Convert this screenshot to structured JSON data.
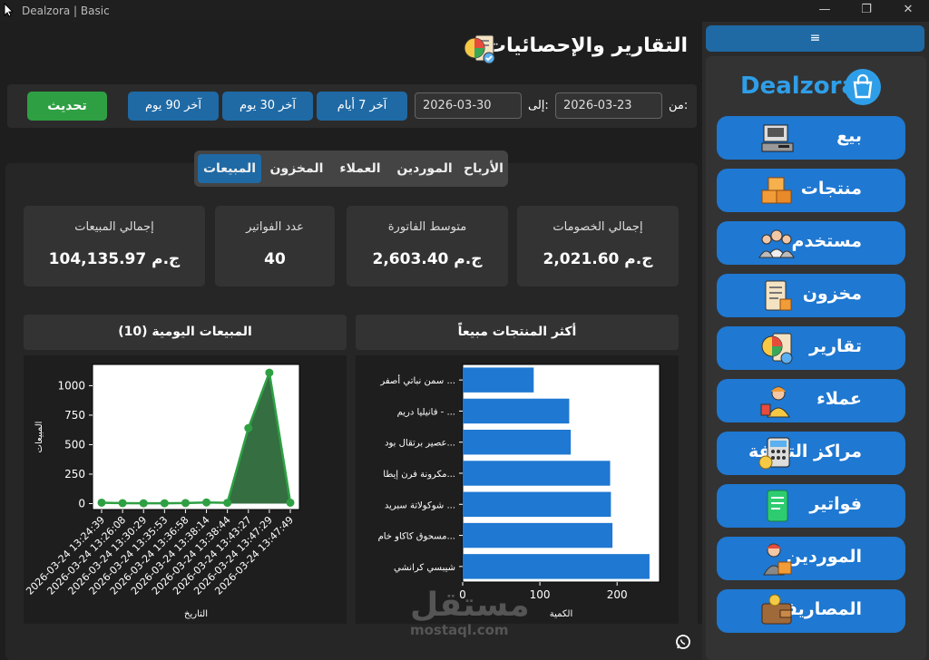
{
  "window": {
    "title": "Dealzora | Basic",
    "min_glyph": "—",
    "max_glyph": "❐",
    "close_glyph": "✕"
  },
  "page": {
    "title": "التقارير والإحصائيات"
  },
  "filters": {
    "from_label": "من:",
    "from_value": "2026-03-23",
    "to_label": "إلى:",
    "to_value": "2026-03-30",
    "presets": [
      "آخر 7 أيام",
      "آخر 30 يوم",
      "آخر 90 يوم"
    ],
    "refresh_label": "تحديث"
  },
  "tabs": [
    "الأرباح",
    "الموردين",
    "العملاء",
    "المخزون",
    "المبيعات"
  ],
  "active_tab": "المبيعات",
  "cards": [
    {
      "label": "إجمالي الخصومات",
      "value": "ج.م 2,021.60"
    },
    {
      "label": "متوسط الفاتورة",
      "value": "ج.م 2,603.40"
    },
    {
      "label": "عدد الفواتير",
      "value": "40"
    },
    {
      "label": "إجمالي المبيعات",
      "value": "ج.م 104,135.97"
    }
  ],
  "sections": {
    "top_products": "أكثر المنتجات مبيعاً",
    "daily_sales": "المبيعات اليومية (10)"
  },
  "chart_data": [
    {
      "type": "bar",
      "orientation": "horizontal",
      "categories": [
        "سمن نباتي أصفر ...",
        "فانيليا دريم - ...",
        "عصير برتقال بود...",
        "مكرونة فرن إيطا...",
        "شوكولاتة سبريد ...",
        "مسحوق كاكاو خام...",
        "شيبسي كرانشي"
      ],
      "values": [
        92,
        138,
        140,
        191,
        192,
        194,
        242
      ],
      "xlabel": "الكمية",
      "ylabel": "",
      "xticks": [
        "0",
        "100",
        "200"
      ],
      "xlim": [
        0,
        255
      ],
      "color": "#1f78d1"
    },
    {
      "type": "area",
      "x": [
        "2026-03-24 13:24:39",
        "2026-03-24 13:26:08",
        "2026-03-24 13:30:29",
        "2026-03-24 13:35:53",
        "2026-03-24 13:36:58",
        "2026-03-24 13:38:14",
        "2026-03-24 13:38:44",
        "2026-03-24 13:43:27",
        "2026-03-24 13:47:29",
        "2026-03-24 13:47:49"
      ],
      "values": [
        8,
        4,
        3,
        3,
        5,
        10,
        7,
        640,
        1110,
        8
      ],
      "xlabel": "التاريخ",
      "ylabel": "المبيعات",
      "yticks": [
        "0",
        "250",
        "500",
        "750",
        "1000"
      ],
      "ylim": [
        -50,
        1180
      ],
      "color": "#2ea043"
    }
  ],
  "sidebar": {
    "menu_glyph": "≡",
    "brand": "Dealzora",
    "items": [
      {
        "label": "بيع",
        "icon": "cash-register-icon"
      },
      {
        "label": "منتجات",
        "icon": "boxes-icon"
      },
      {
        "label": "مستخدم",
        "icon": "users-icon"
      },
      {
        "label": "مخزون",
        "icon": "inventory-icon"
      },
      {
        "label": "تقارير",
        "icon": "report-icon"
      },
      {
        "label": "عملاء",
        "icon": "customer-icon"
      },
      {
        "label": "مراكز التكلفة",
        "icon": "calculator-icon"
      },
      {
        "label": "فواتير",
        "icon": "invoice-icon"
      },
      {
        "label": "الموردين",
        "icon": "supplier-icon"
      },
      {
        "label": "المصاريف",
        "icon": "wallet-icon"
      }
    ]
  },
  "watermark": {
    "arabic": "مستقل",
    "latin": "mostaql.com"
  }
}
